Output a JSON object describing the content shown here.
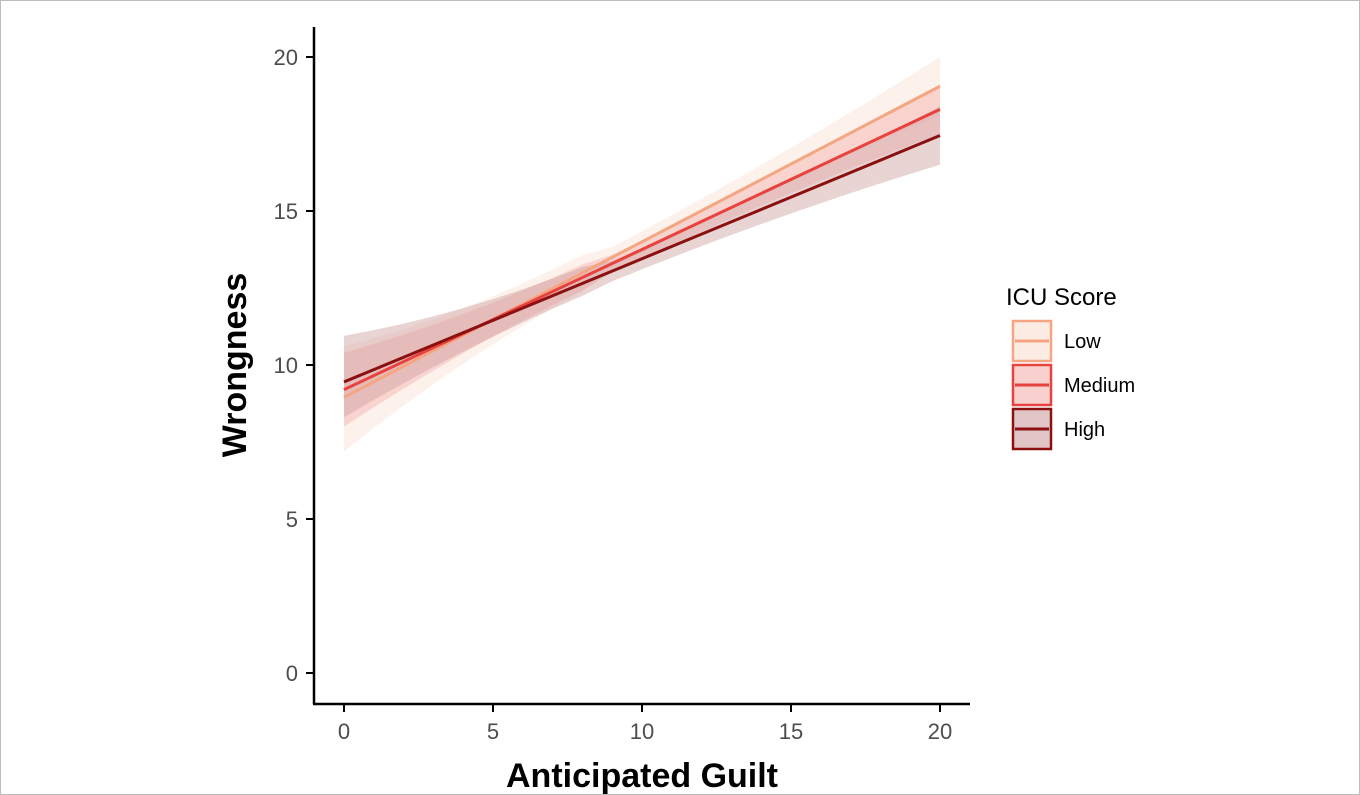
{
  "chart_data": {
    "type": "line",
    "xlabel": "Anticipated Guilt",
    "ylabel": "Wrongness",
    "xlim": [
      -1,
      21
    ],
    "ylim": [
      -1,
      21
    ],
    "xticks": [
      0,
      5,
      10,
      15,
      20
    ],
    "yticks": [
      0,
      5,
      10,
      15,
      20
    ],
    "grid": false,
    "legend": {
      "title": "ICU Score",
      "position": "right"
    },
    "series": [
      {
        "name": "Low",
        "color": "#f4a582",
        "fill": "#fbe0d2",
        "x": [
          0,
          20
        ],
        "y": [
          8.95,
          19.05
        ],
        "lower": [
          7.2,
          18.1
        ],
        "upper": [
          10.6,
          20.0
        ]
      },
      {
        "name": "Medium",
        "color": "#e8423e",
        "fill": "#f3b2ae",
        "x": [
          0,
          20
        ],
        "y": [
          9.2,
          18.3
        ],
        "lower": [
          8.0,
          17.5
        ],
        "upper": [
          10.4,
          19.1
        ]
      },
      {
        "name": "High",
        "color": "#8b1111",
        "fill": "#cf9fa0",
        "x": [
          0,
          20
        ],
        "y": [
          9.45,
          17.45
        ],
        "lower": [
          8.3,
          16.5
        ],
        "upper": [
          10.95,
          18.4
        ]
      }
    ]
  }
}
